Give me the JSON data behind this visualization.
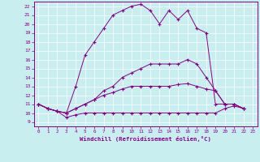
{
  "xlabel": "Windchill (Refroidissement éolien,°C)",
  "bg_color": "#c8eef0",
  "line_color": "#880088",
  "xlim": [
    -0.5,
    23.5
  ],
  "ylim": [
    8.5,
    22.5
  ],
  "xticks": [
    0,
    1,
    2,
    3,
    4,
    5,
    6,
    7,
    8,
    9,
    10,
    11,
    12,
    13,
    14,
    15,
    16,
    17,
    18,
    19,
    20,
    21,
    22,
    23
  ],
  "yticks": [
    9,
    10,
    11,
    12,
    13,
    14,
    15,
    16,
    17,
    18,
    19,
    20,
    21,
    22
  ],
  "series": [
    {
      "x": [
        0,
        1,
        2,
        3,
        4,
        5,
        6,
        7,
        8,
        9,
        10,
        11,
        12,
        13,
        14,
        15,
        16,
        17,
        18,
        19,
        20,
        21,
        22
      ],
      "y": [
        11,
        10.5,
        10.2,
        9.5,
        9.8,
        10,
        10,
        10,
        10,
        10,
        10,
        10,
        10,
        10,
        10,
        10,
        10,
        10,
        10,
        10,
        10.5,
        10.8,
        10.5
      ]
    },
    {
      "x": [
        0,
        1,
        2,
        3,
        4,
        5,
        6,
        7,
        8,
        9,
        10,
        11,
        12,
        13,
        14,
        15,
        16,
        17,
        18,
        19,
        20,
        21,
        22
      ],
      "y": [
        11,
        10.5,
        10.2,
        10,
        10.5,
        11,
        11.5,
        12,
        12.3,
        12.7,
        13,
        13,
        13,
        13,
        13,
        13.2,
        13.3,
        13,
        12.7,
        12.5,
        11,
        11,
        10.5
      ]
    },
    {
      "x": [
        0,
        1,
        2,
        3,
        4,
        5,
        6,
        7,
        8,
        9,
        10,
        11,
        12,
        13,
        14,
        15,
        16,
        17,
        18,
        19,
        20,
        21,
        22
      ],
      "y": [
        11,
        10.5,
        10.2,
        10,
        10.5,
        11,
        11.5,
        12.5,
        13,
        14,
        14.5,
        15,
        15.5,
        15.5,
        15.5,
        15.5,
        16,
        15.5,
        14,
        12.5,
        11,
        11,
        10.5
      ]
    },
    {
      "x": [
        0,
        1,
        2,
        3,
        4,
        5,
        6,
        7,
        8,
        9,
        10,
        11,
        12,
        13,
        14,
        15,
        16,
        17,
        18,
        19,
        20,
        21,
        22
      ],
      "y": [
        11,
        10.5,
        10.2,
        10,
        13,
        16.5,
        18,
        19.5,
        21,
        21.5,
        22,
        22.2,
        21.5,
        20,
        21.5,
        20.5,
        21.5,
        19.5,
        19,
        11,
        11,
        11,
        10.5
      ]
    }
  ]
}
